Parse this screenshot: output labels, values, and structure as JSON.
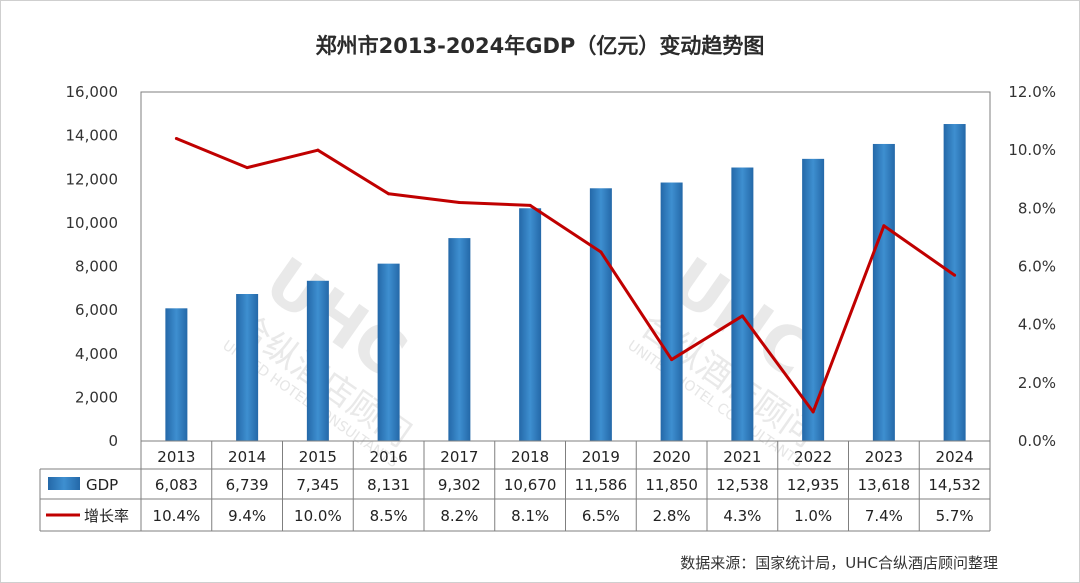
{
  "chart_data": {
    "type": "bar",
    "title": "郑州市2013-2024年GDP（亿元）变动趋势图",
    "categories": [
      "2013",
      "2014",
      "2015",
      "2016",
      "2017",
      "2018",
      "2019",
      "2020",
      "2021",
      "2022",
      "2023",
      "2024"
    ],
    "series": [
      {
        "name": "GDP",
        "kind": "bar",
        "axis": "left",
        "color": "#2E75B6",
        "values": [
          6083,
          6739,
          7345,
          8131,
          9302,
          10670,
          11586,
          11850,
          12538,
          12935,
          13618,
          14532
        ],
        "labels": [
          "6,083",
          "6,739",
          "7,345",
          "8,131",
          "9,302",
          "10,670",
          "11,586",
          "11,850",
          "12,538",
          "12,935",
          "13,618",
          "14,532"
        ]
      },
      {
        "name": "增长率",
        "kind": "line",
        "axis": "right",
        "color": "#C00000",
        "values": [
          10.4,
          9.4,
          10.0,
          8.5,
          8.2,
          8.1,
          6.5,
          2.8,
          4.3,
          1.0,
          7.4,
          5.7
        ],
        "labels": [
          "10.4%",
          "9.4%",
          "10.0%",
          "8.5%",
          "8.2%",
          "8.1%",
          "6.5%",
          "2.8%",
          "4.3%",
          "1.0%",
          "7.4%",
          "5.7%"
        ]
      }
    ],
    "left_axis": {
      "range": [
        0,
        16000
      ],
      "ticks": [
        0,
        2000,
        4000,
        6000,
        8000,
        10000,
        12000,
        14000,
        16000
      ],
      "tick_labels": [
        "0",
        "2,000",
        "4,000",
        "6,000",
        "8,000",
        "10,000",
        "12,000",
        "14,000",
        "16,000"
      ]
    },
    "right_axis": {
      "range": [
        0,
        12
      ],
      "ticks": [
        0,
        2,
        4,
        6,
        8,
        10,
        12
      ],
      "tick_labels": [
        "0.0%",
        "2.0%",
        "4.0%",
        "6.0%",
        "8.0%",
        "10.0%",
        "12.0%"
      ]
    },
    "grid": false,
    "data_table": true,
    "source": "数据来源：国家统计局，UHC合纵酒店顾问整理"
  },
  "watermark": {
    "logo": "UHC",
    "name_cn": "合纵酒店顾问",
    "name_en": "UNITED HOTEL CONSULTANTS"
  }
}
